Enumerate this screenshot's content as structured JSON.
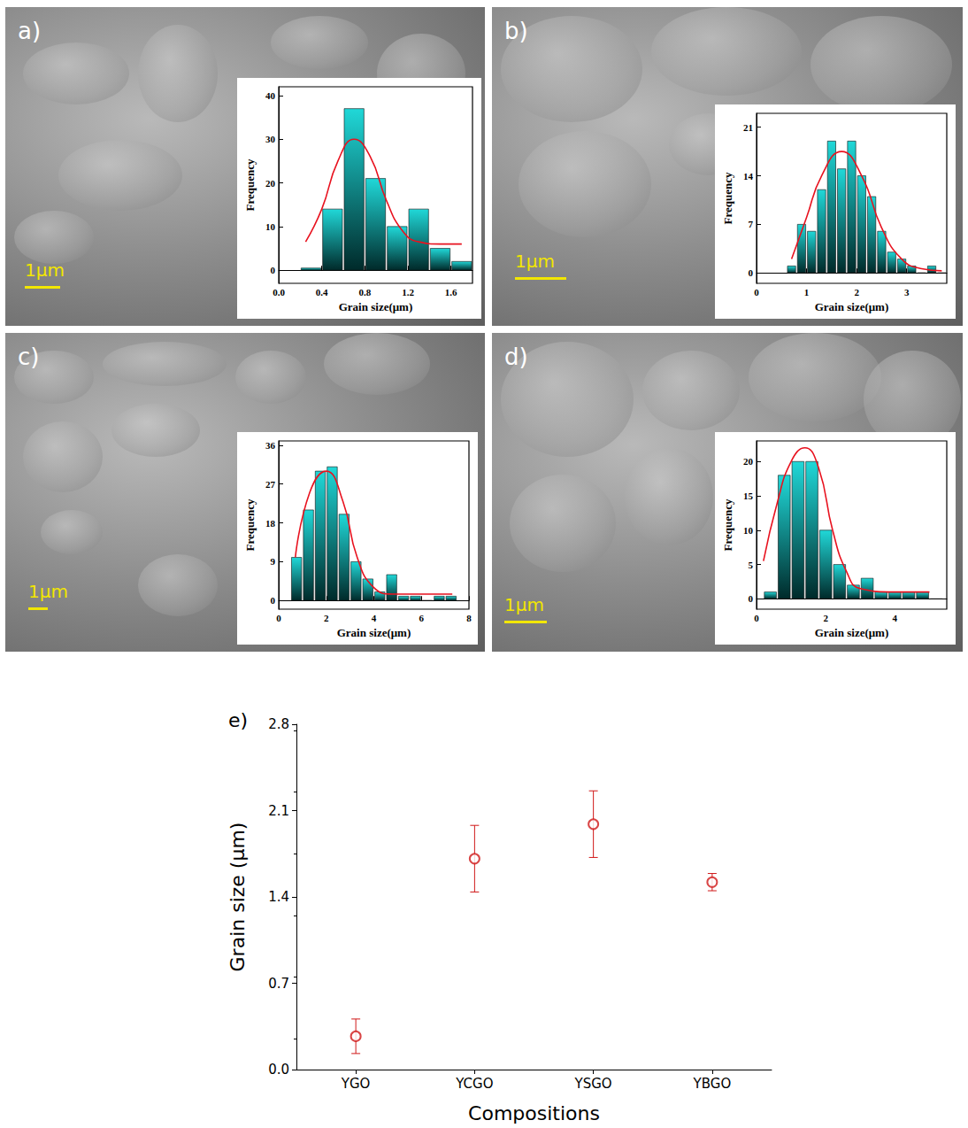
{
  "chart_data": [
    {
      "type": "histogram",
      "panel": "a)",
      "scale_bar_label": "1μm",
      "x_label": "Grain size(μm)",
      "y_label": "Frequency",
      "bins": [
        0.2,
        0.4,
        0.6,
        0.8,
        1.0,
        1.2,
        1.4,
        1.6,
        1.8
      ],
      "counts": [
        0.5,
        14,
        37,
        21,
        10,
        14,
        5,
        2
      ],
      "color": "#20d8d8",
      "fit": {
        "color": "#e8121f",
        "x": [
          0.25,
          0.4,
          0.55,
          0.7,
          0.85,
          1.0,
          1.15,
          1.3,
          1.5,
          1.7
        ],
        "values": [
          6.5,
          14,
          25,
          30,
          26,
          16,
          9,
          6.5,
          6,
          6
        ]
      },
      "xlim": [
        0,
        1.8
      ],
      "xticks": [
        {
          "value": 0,
          "label": "0.0"
        },
        0.4,
        0.8,
        1.2,
        1.6
      ],
      "ylim": [
        -3,
        42
      ],
      "yticks": [
        0,
        10,
        20,
        30,
        40
      ]
    },
    {
      "type": "histogram",
      "panel": "b)",
      "scale_bar_label": "1μm",
      "x_label": "Grain size(μm)",
      "y_label": "Frequency",
      "bins": [
        0.6,
        0.8,
        1.0,
        1.2,
        1.4,
        1.6,
        1.8,
        2.0,
        2.2,
        2.4,
        2.6,
        2.8,
        3.0,
        3.2,
        3.4,
        3.6,
        3.8
      ],
      "counts": [
        1,
        7,
        6,
        12,
        19,
        15,
        19,
        14,
        11,
        6,
        3,
        2,
        1,
        0,
        1,
        0
      ],
      "color": "#20d8d8",
      "fit": {
        "color": "#e8121f",
        "x": [
          0.7,
          1.0,
          1.3,
          1.7,
          2.1,
          2.5,
          2.9,
          3.3,
          3.7
        ],
        "values": [
          2,
          8,
          14,
          17.5,
          14,
          6.5,
          2,
          0.6,
          0.3
        ]
      },
      "xlim": [
        0,
        3.8
      ],
      "xticks": [
        0,
        1,
        2,
        3
      ],
      "ylim": [
        -1.5,
        23
      ],
      "yticks": [
        0,
        7,
        14,
        21
      ]
    },
    {
      "type": "histogram",
      "panel": "c)",
      "scale_bar_label": "1μm",
      "x_label": "Grain size(μm)",
      "y_label": "Frequency",
      "bins": [
        0.5,
        1.0,
        1.5,
        2.0,
        2.5,
        3.0,
        3.5,
        4.0,
        4.5,
        5.0,
        5.5,
        6.0,
        6.5,
        7.0,
        7.5
      ],
      "counts": [
        10,
        21,
        30,
        31,
        20,
        9,
        5,
        2,
        6,
        1,
        1,
        0,
        1,
        1
      ],
      "color": "#20d8d8",
      "fit": {
        "color": "#e8121f",
        "x": [
          0.7,
          1.3,
          2.0,
          2.7,
          3.3,
          4.0,
          4.8,
          6.0,
          7.3
        ],
        "values": [
          10,
          25,
          30,
          23,
          10,
          3,
          1.5,
          1.5,
          1.5
        ]
      },
      "xlim": [
        0,
        8
      ],
      "xticks": [
        0,
        2,
        4,
        6,
        8
      ],
      "ylim": [
        -2,
        37
      ],
      "yticks": [
        0,
        9,
        18,
        27,
        36
      ]
    },
    {
      "type": "histogram",
      "panel": "d)",
      "scale_bar_label": "1μm",
      "x_label": "Grain size(μm)",
      "y_label": "Frequency",
      "bins": [
        0.2,
        0.6,
        1.0,
        1.4,
        1.8,
        2.2,
        2.6,
        3.0,
        3.4,
        3.8,
        4.2,
        4.6,
        5.0,
        5.4
      ],
      "counts": [
        1,
        18,
        20,
        20,
        10,
        5,
        2,
        3,
        1,
        1,
        1,
        1,
        0
      ],
      "color": "#20d8d8",
      "fit": {
        "color": "#e8121f",
        "x": [
          0.2,
          0.6,
          1.0,
          1.4,
          1.8,
          2.2,
          2.6,
          3.0,
          4.0,
          5.0
        ],
        "values": [
          5.5,
          14,
          20,
          22,
          19,
          10,
          4,
          1.5,
          1,
          1
        ]
      },
      "xlim": [
        0,
        5.5
      ],
      "xticks": [
        0,
        2,
        4
      ],
      "ylim": [
        -1.5,
        23
      ],
      "yticks": [
        0,
        5,
        10,
        15,
        20
      ]
    },
    {
      "type": "scatter",
      "panel": "e)",
      "marker": "open_circle",
      "x_label": "Compositions",
      "y_label": "Grain size (μm)",
      "categories": [
        "YGO",
        "YCGO",
        "YSGO",
        "YBGO"
      ],
      "values": [
        0.27,
        1.71,
        1.99,
        1.52
      ],
      "errors": [
        0.14,
        0.27,
        0.27,
        0.07
      ],
      "color": "#d01818",
      "ylim": [
        0,
        2.8
      ],
      "yticks": [
        {
          "value": 0,
          "label": "0.0"
        },
        0.7,
        1.4,
        2.1,
        2.8
      ]
    }
  ]
}
